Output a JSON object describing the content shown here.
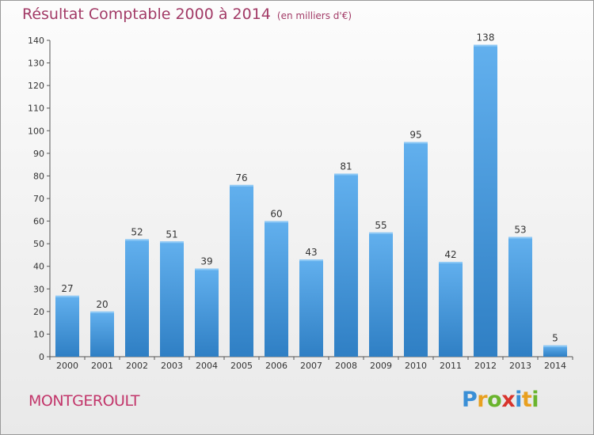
{
  "header": {
    "title": "Résultat Comptable 2000 à 2014",
    "subtitle": "(en milliers d'€)"
  },
  "footer": {
    "place": "MONTGEROULT",
    "logo": [
      "P",
      "r",
      "o",
      "x",
      "i",
      "t",
      "i"
    ],
    "logo_colors": [
      "#3a8fd6",
      "#e8a020",
      "#6ab42d",
      "#d8342c",
      "#3a8fd6",
      "#e8a020",
      "#6ab42d"
    ]
  },
  "chart_data": {
    "type": "bar",
    "title": "Résultat Comptable 2000 à 2014",
    "subtitle": "(en milliers d'€)",
    "categories": [
      "2000",
      "2001",
      "2002",
      "2003",
      "2004",
      "2005",
      "2006",
      "2007",
      "2008",
      "2009",
      "2010",
      "2011",
      "2012",
      "2013",
      "2014"
    ],
    "values": [
      27,
      20,
      52,
      51,
      39,
      76,
      60,
      43,
      81,
      55,
      95,
      42,
      138,
      53,
      5
    ],
    "ylim": [
      0,
      140
    ],
    "yticks": [
      0,
      10,
      20,
      30,
      40,
      50,
      60,
      70,
      80,
      90,
      100,
      110,
      120,
      130,
      140
    ],
    "grid": false,
    "bar_color": "#3f94d8",
    "bar_color_light": "#62b0ee"
  }
}
